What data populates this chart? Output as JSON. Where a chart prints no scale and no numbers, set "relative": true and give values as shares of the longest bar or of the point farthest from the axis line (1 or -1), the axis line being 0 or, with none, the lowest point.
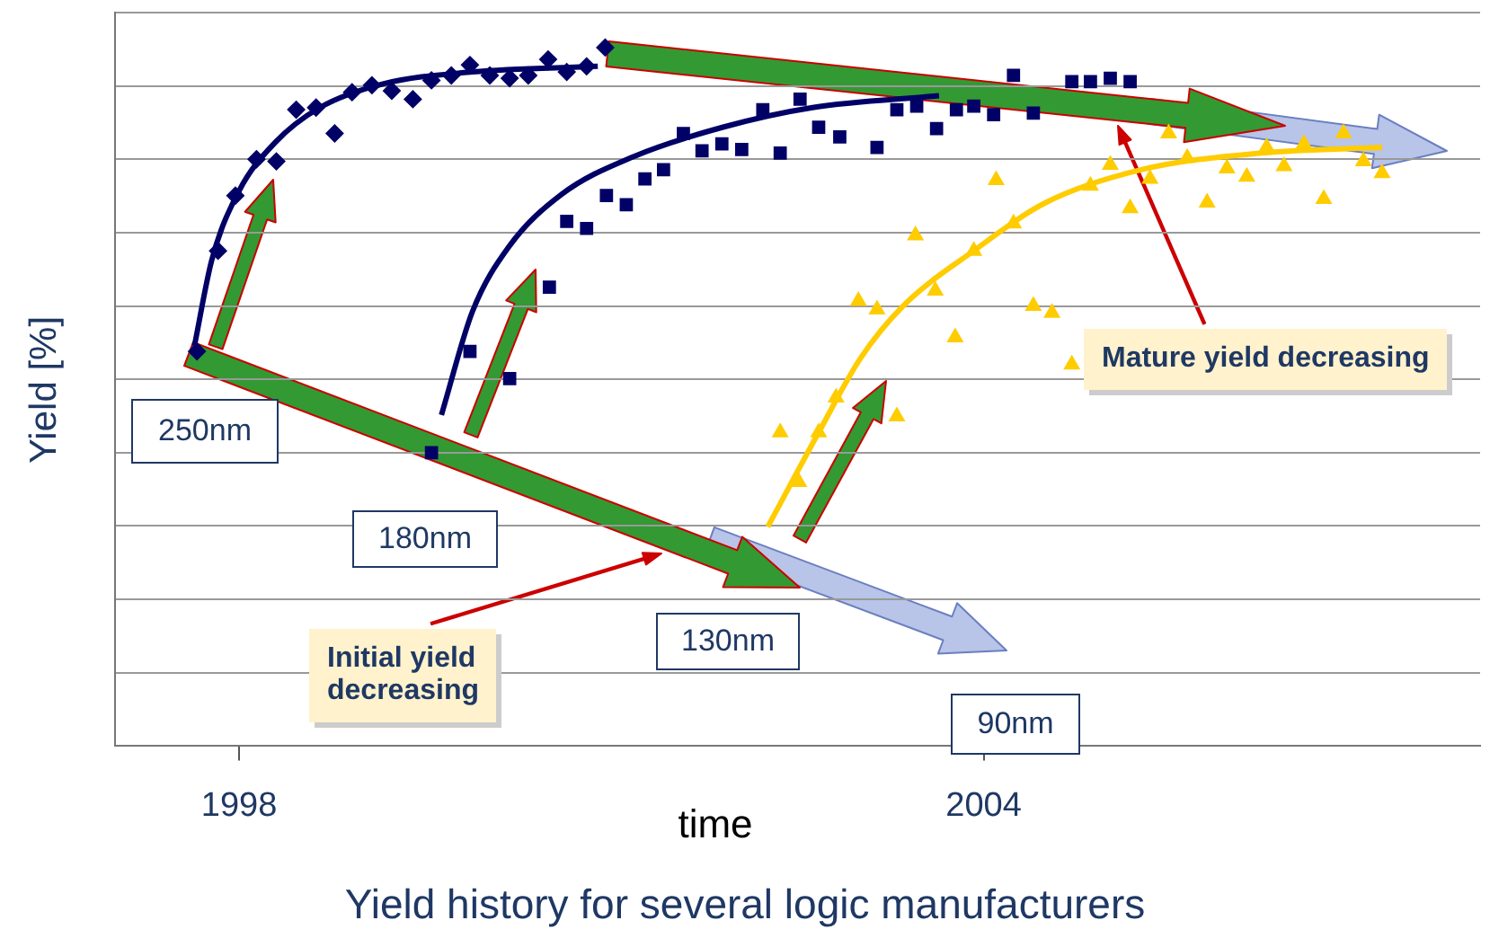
{
  "chart_data": {
    "type": "scatter",
    "title": "Yield history for several logic manufacturers",
    "xlabel": "time",
    "ylabel": "Yield [%]",
    "relative": true,
    "xlim": [
      1997,
      2008
    ],
    "xticks": [
      1998,
      2004
    ],
    "grid": "y",
    "annotations": [
      "250nm",
      "180nm",
      "130nm",
      "90nm",
      "Initial yield decreasing",
      "Mature yield decreasing"
    ],
    "series": [
      {
        "type": "scatter",
        "marker": "diamond",
        "color": "#000066",
        "x": [
          1997.66,
          1997.83,
          1997.97,
          1998.14,
          1998.3,
          1998.46,
          1998.62,
          1998.77,
          1998.91,
          1999.07,
          1999.23,
          1999.4,
          1999.55,
          1999.71,
          1999.86,
          2000.02,
          2000.18,
          2000.33,
          2000.49,
          2000.64,
          2000.8,
          2000.95
        ],
        "values": [
          0.565,
          0.709,
          0.788,
          0.84,
          0.837,
          0.911,
          0.914,
          0.877,
          0.936,
          0.946,
          0.938,
          0.926,
          0.953,
          0.96,
          0.975,
          0.96,
          0.956,
          0.96,
          0.983,
          0.965,
          0.973,
          1
        ]
      },
      {
        "type": "line",
        "marker": "none",
        "color": "#000066",
        "x": [
          1997.64,
          1997.78,
          1998.0,
          1998.29,
          1998.65,
          1999.16,
          1999.88,
          2000.89
        ],
        "values": [
          0.573,
          0.696,
          0.795,
          0.864,
          0.914,
          0.948,
          0.965,
          0.973
        ]
      },
      {
        "type": "scatter",
        "marker": "square",
        "color": "#000066",
        "x": [
          1999.55,
          1999.86,
          2000.18,
          2000.5,
          2000.64,
          2000.8,
          2000.96,
          2001.12,
          2001.27,
          2001.42,
          2001.58,
          2001.73,
          2001.89,
          2002.05,
          2002.22,
          2002.36,
          2002.52,
          2002.67,
          2002.84,
          2003.14,
          2003.3,
          2003.46,
          2003.62,
          2003.78,
          2003.92,
          2004.08,
          2004.24,
          2004.4,
          2004.71,
          2004.86,
          2005.02,
          2005.18
        ],
        "values": [
          0.42,
          0.565,
          0.526,
          0.657,
          0.751,
          0.741,
          0.788,
          0.775,
          0.812,
          0.825,
          0.877,
          0.852,
          0.862,
          0.854,
          0.911,
          0.849,
          0.926,
          0.886,
          0.872,
          0.857,
          0.911,
          0.916,
          0.884,
          0.911,
          0.916,
          0.904,
          0.96,
          0.906,
          0.951,
          0.951,
          0.956,
          0.951
        ]
      },
      {
        "type": "line",
        "marker": "none",
        "color": "#000066",
        "x": [
          1999.63,
          1999.88,
          2000.17,
          2000.6,
          2001.18,
          2001.9,
          2002.62,
          2003.64
        ],
        "values": [
          0.474,
          0.622,
          0.714,
          0.79,
          0.844,
          0.886,
          0.914,
          0.931
        ]
      },
      {
        "type": "scatter",
        "marker": "triangle",
        "color": "#ffcc00",
        "x": [
          2002.36,
          2002.51,
          2002.67,
          2002.81,
          2002.99,
          2003.14,
          2003.3,
          2003.45,
          2003.61,
          2003.77,
          2003.92,
          2004.1,
          2004.24,
          2004.4,
          2004.55,
          2004.71,
          2004.86,
          2005.02,
          2005.18,
          2005.34,
          2005.49,
          2005.64,
          2005.8,
          2005.96,
          2006.12,
          2006.28,
          2006.42,
          2006.58,
          2006.74,
          2006.9,
          2007.06,
          2007.21
        ],
        "values": [
          0.449,
          0.378,
          0.449,
          0.499,
          0.637,
          0.625,
          0.472,
          0.731,
          0.652,
          0.585,
          0.709,
          0.81,
          0.748,
          0.63,
          0.62,
          0.546,
          0.802,
          0.832,
          0.77,
          0.812,
          0.877,
          0.842,
          0.778,
          0.827,
          0.815,
          0.857,
          0.83,
          0.862,
          0.783,
          0.877,
          0.837,
          0.82
        ]
      },
      {
        "type": "line",
        "marker": "none",
        "color": "#ffcc00",
        "x": [
          2002.26,
          2002.67,
          2003.01,
          2003.35,
          2003.92,
          2004.5,
          2005.27,
          2006.24,
          2007.21
        ],
        "values": [
          0.314,
          0.449,
          0.556,
          0.63,
          0.709,
          0.778,
          0.825,
          0.849,
          0.857
        ]
      }
    ]
  }
}
